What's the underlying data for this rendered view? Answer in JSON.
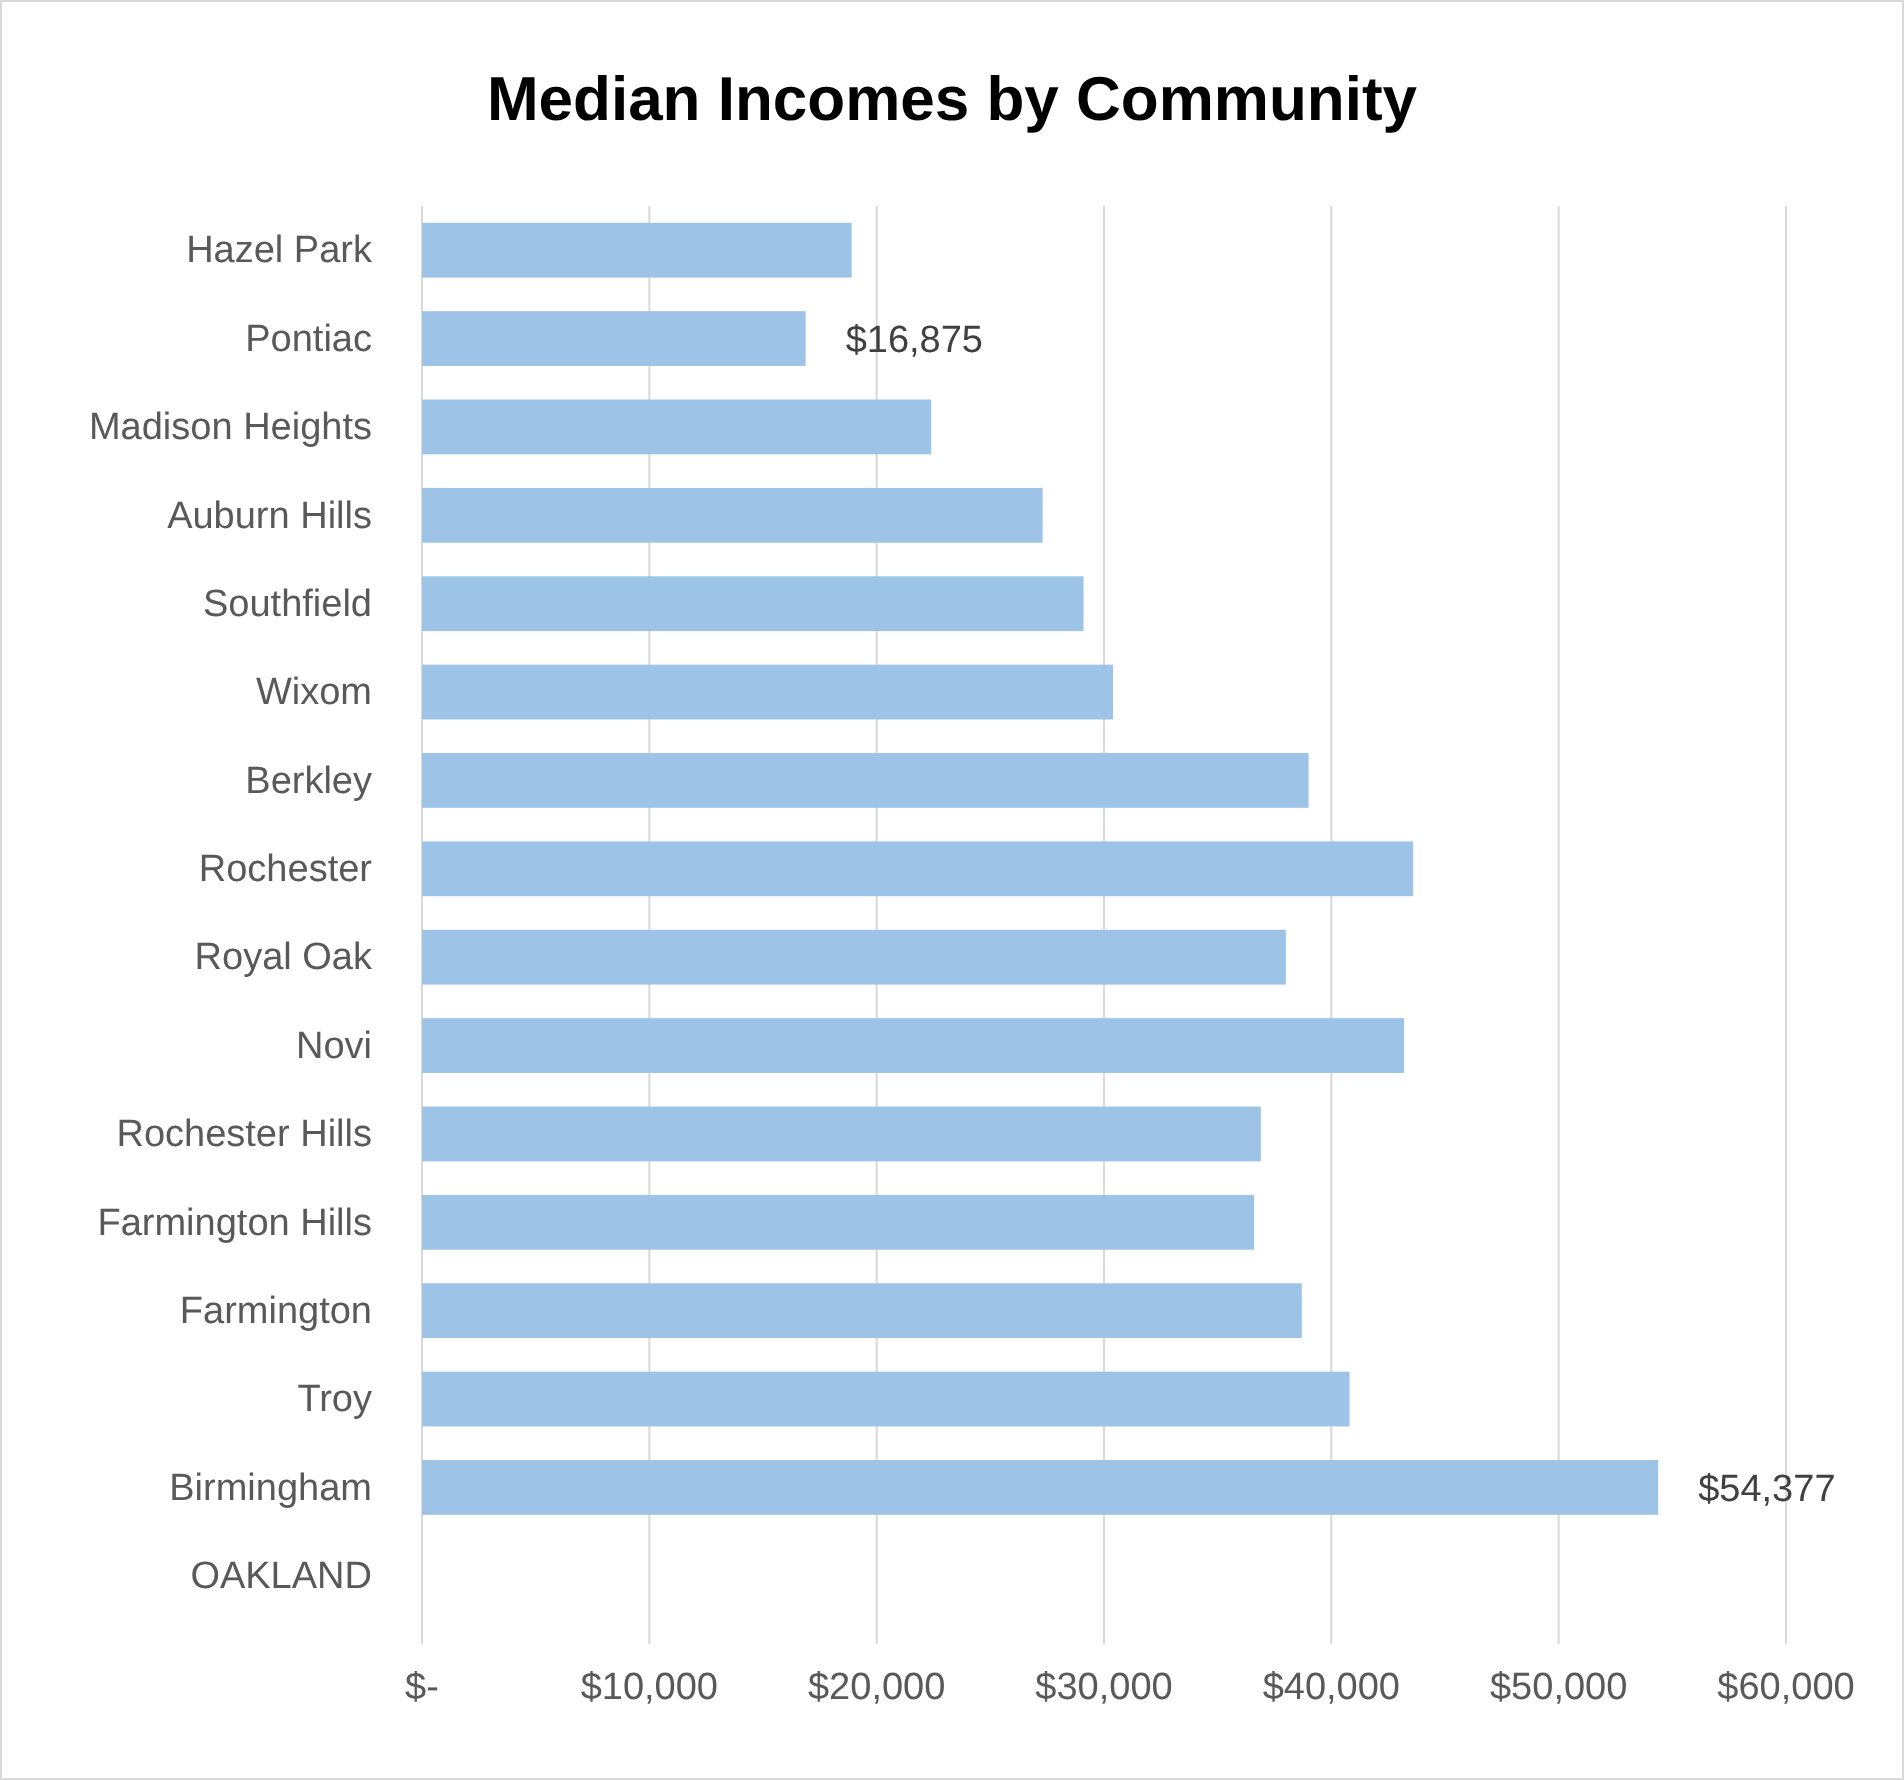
{
  "chart_data": {
    "type": "bar",
    "orientation": "horizontal",
    "title": "Median Incomes by Community",
    "categories": [
      "Hazel Park",
      "Pontiac",
      "Madison Heights",
      "Auburn Hills",
      "Southfield",
      "Wixom",
      "Berkley",
      "Rochester",
      "Royal Oak",
      "Novi",
      "Rochester Hills",
      "Farmington Hills",
      "Farmington",
      "Troy",
      "Birmingham",
      "OAKLAND"
    ],
    "values": [
      18900,
      16875,
      22400,
      27300,
      29100,
      30400,
      39000,
      43600,
      38000,
      43200,
      36900,
      36600,
      38700,
      40800,
      54377,
      null
    ],
    "value_labels": [
      null,
      "$16,875",
      null,
      null,
      null,
      null,
      null,
      null,
      null,
      null,
      null,
      null,
      null,
      null,
      "$54,377",
      null
    ],
    "color": "#9dc3e6",
    "xlim": [
      0,
      60000
    ],
    "xticks": [
      {
        "value": 0,
        "label": "$-"
      },
      {
        "value": 10000,
        "label": "$10,000"
      },
      {
        "value": 20000,
        "label": "$20,000"
      },
      {
        "value": 30000,
        "label": "$30,000"
      },
      {
        "value": 40000,
        "label": "$40,000"
      },
      {
        "value": 50000,
        "label": "$50,000"
      },
      {
        "value": 60000,
        "label": "$60,000"
      }
    ],
    "grid": "x"
  }
}
